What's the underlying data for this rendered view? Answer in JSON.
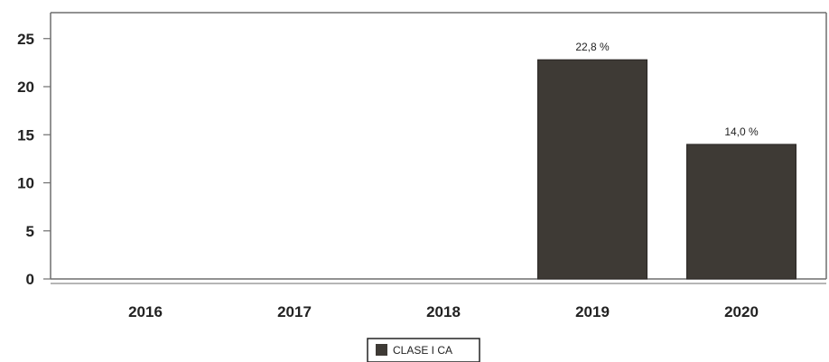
{
  "chart_data": {
    "type": "bar",
    "categories": [
      "2016",
      "2017",
      "2018",
      "2019",
      "2020"
    ],
    "series": [
      {
        "name": "CLASE I CA",
        "values": [
          null,
          null,
          null,
          22.8,
          14.0
        ],
        "labels": [
          "",
          "",
          "",
          "22,8 %",
          "14,0 %"
        ]
      }
    ],
    "yticks": [
      "0",
      "5",
      "10",
      "15",
      "20",
      "25"
    ],
    "ylim": [
      0,
      27.7
    ],
    "grid": false,
    "legend": "bottom-center",
    "colors": {
      "bar": "#3e3a35",
      "axis": "#6e6e6e",
      "text": "#222222"
    }
  }
}
